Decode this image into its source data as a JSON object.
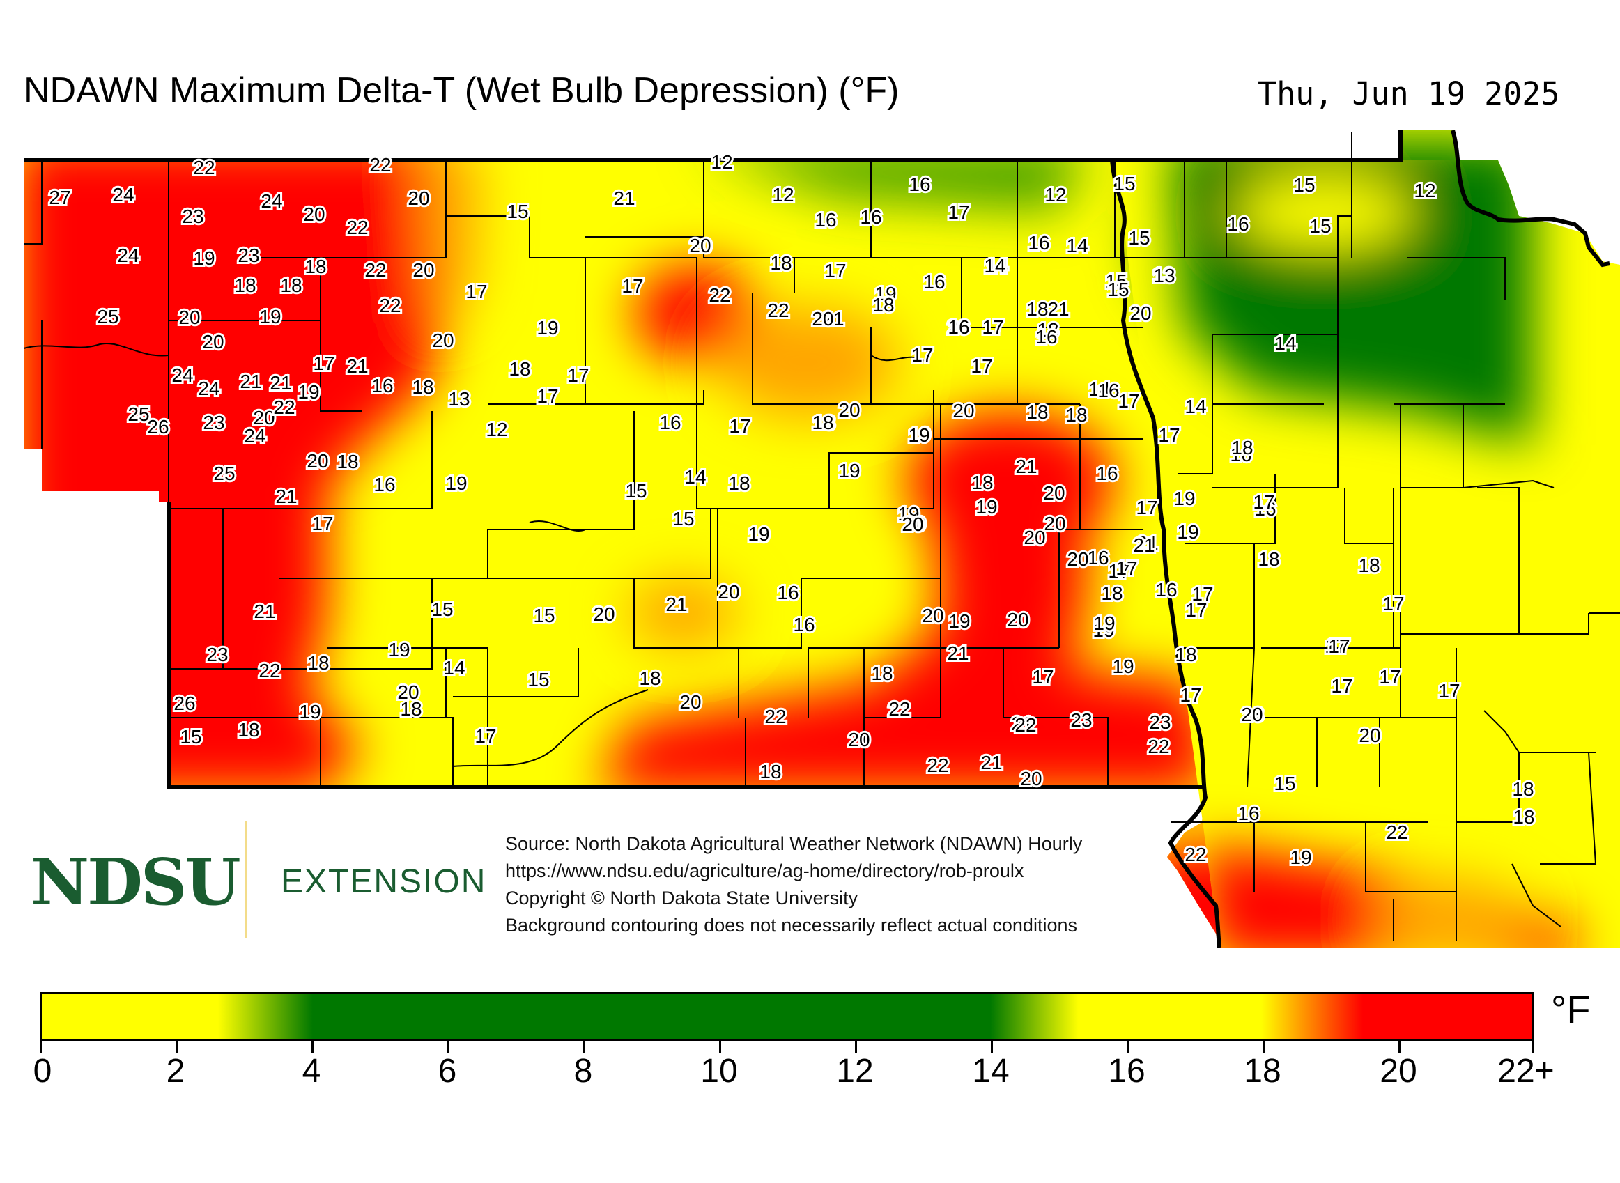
{
  "title": "NDAWN Maximum Delta-T (Wet Bulb Depression) (°F)",
  "date": "Thu, Jun 19 2025",
  "colors": {
    "low_yellow": "#ffff00",
    "green": "#007800",
    "orange": "#ffa500",
    "red": "#ff0000",
    "county_line": "#000000",
    "logo_green": "#1a5c30"
  },
  "logo": {
    "wordmark": "NDSU",
    "division": "EXTENSION"
  },
  "source": {
    "line1": "Source: North Dakota Agricultural Weather Network (NDAWN) Hourly",
    "line2": "https://www.ndsu.edu/agriculture/ag-home/directory/rob-proulx",
    "line3": "Copyright © North Dakota State University",
    "line4": "Background contouring does not necessarily reflect actual conditions"
  },
  "legend": {
    "unit": "°F",
    "ticks": [
      "0",
      "2",
      "4",
      "6",
      "8",
      "10",
      "12",
      "14",
      "16",
      "18",
      "20",
      "22+"
    ],
    "stops": [
      {
        "value": 0,
        "color": "#ffff00"
      },
      {
        "value": 2.6,
        "color": "#ffff00"
      },
      {
        "value": 4,
        "color": "#007800"
      },
      {
        "value": 14,
        "color": "#007800"
      },
      {
        "value": 15.3,
        "color": "#ffff00"
      },
      {
        "value": 18,
        "color": "#ffff00"
      },
      {
        "value": 19.5,
        "color": "#ff0000"
      },
      {
        "value": 22,
        "color": "#ff0000"
      }
    ]
  },
  "station_values": [
    "22",
    "22",
    "12",
    "27",
    "24",
    "24",
    "20",
    "16",
    "17",
    "12",
    "15",
    "15",
    "12",
    "23",
    "20",
    "22",
    "21",
    "15",
    "12",
    "16",
    "16",
    "15",
    "16",
    "24",
    "19",
    "23",
    "20",
    "14",
    "16",
    "14",
    "15",
    "18",
    "18",
    "18",
    "22",
    "20",
    "18",
    "17",
    "20",
    "16",
    "17",
    "13",
    "14",
    "15",
    "22",
    "25",
    "20",
    "19",
    "22",
    "21",
    "21",
    "20",
    "17",
    "22",
    "19",
    "18",
    "20",
    "18",
    "20",
    "16",
    "17",
    "16",
    "15",
    "13",
    "14",
    "20",
    "20",
    "24",
    "17",
    "21",
    "16",
    "18",
    "17",
    "18",
    "17",
    "24",
    "21",
    "21",
    "19",
    "17",
    "19",
    "17",
    "14",
    "13",
    "18",
    "25",
    "26",
    "23",
    "20",
    "22",
    "24",
    "12",
    "16",
    "17",
    "18",
    "19",
    "20",
    "18",
    "18",
    "17",
    "14",
    "20",
    "18",
    "16",
    "16",
    "19",
    "18",
    "21",
    "21",
    "16",
    "14",
    "18",
    "20",
    "18",
    "25",
    "15",
    "19",
    "21",
    "19",
    "16",
    "17",
    "17",
    "16",
    "17",
    "19",
    "15",
    "19",
    "18",
    "20",
    "18",
    "19",
    "17",
    "19",
    "20",
    "20",
    "17",
    "16",
    "20",
    "18",
    "19",
    "21",
    "17",
    "18",
    "20",
    "20",
    "19",
    "18",
    "21",
    "16",
    "17",
    "19",
    "20",
    "16",
    "15",
    "17",
    "19",
    "20",
    "15",
    "16",
    "20",
    "20",
    "21",
    "20",
    "19",
    "18",
    "17",
    "23",
    "21",
    "18",
    "17",
    "19",
    "14",
    "18",
    "22",
    "21",
    "15",
    "22",
    "19",
    "20",
    "18",
    "17",
    "17",
    "17",
    "17",
    "17",
    "17",
    "20",
    "18",
    "22",
    "23",
    "26",
    "15",
    "19",
    "20",
    "18",
    "22",
    "20",
    "23",
    "21",
    "18",
    "22",
    "20",
    "22",
    "17",
    "22",
    "21",
    "15",
    "20",
    "18",
    "18",
    "18",
    "16",
    "22",
    "22",
    "19"
  ]
}
